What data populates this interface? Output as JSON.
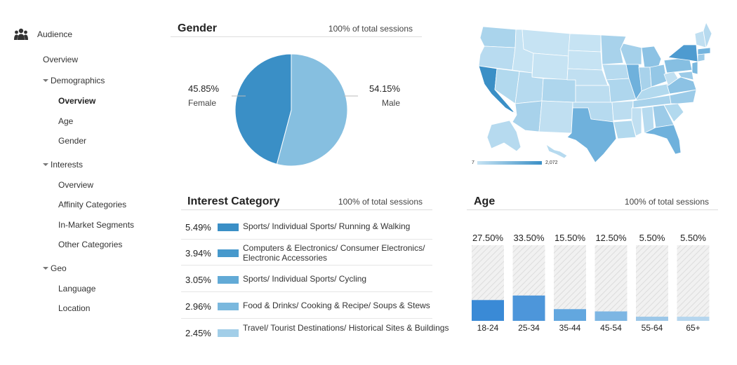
{
  "sidebar": {
    "audience_label": "Audience",
    "items": [
      {
        "label": "Overview",
        "kind": "top"
      },
      {
        "label": "Demographics",
        "kind": "group"
      },
      {
        "label": "Overview",
        "kind": "child",
        "selected": true
      },
      {
        "label": "Age",
        "kind": "child"
      },
      {
        "label": "Gender",
        "kind": "child"
      },
      {
        "label": "Interests",
        "kind": "group"
      },
      {
        "label": "Overview",
        "kind": "child"
      },
      {
        "label": "Affinity Categories",
        "kind": "child"
      },
      {
        "label": "In-Market Segments",
        "kind": "child"
      },
      {
        "label": "Other Categories",
        "kind": "child"
      },
      {
        "label": "Geo",
        "kind": "group"
      },
      {
        "label": "Language",
        "kind": "child"
      },
      {
        "label": "Location",
        "kind": "child"
      }
    ]
  },
  "gender": {
    "title": "Gender",
    "subtitle": "100% of total sessions",
    "female": {
      "pct": "45.85%",
      "label": "Female",
      "value": 45.85,
      "color": "#3a8fc6"
    },
    "male": {
      "pct": "54.15%",
      "label": "Male",
      "value": 54.15,
      "color": "#86bfe0"
    }
  },
  "interest": {
    "title": "Interest Category",
    "subtitle": "100% of total sessions",
    "rows": [
      {
        "pct": "5.49%",
        "value": 5.49,
        "name": "Sports/ Individual Sports/ Running & Walking",
        "color": "#3a8fc6"
      },
      {
        "pct": "3.94%",
        "value": 3.94,
        "name": "Computers & Electronics/ Consumer Electronics/ Electronic Accessories",
        "color": "#4799cc"
      },
      {
        "pct": "3.05%",
        "value": 3.05,
        "name": "Sports/ Individual Sports/ Cycling",
        "color": "#62aad6"
      },
      {
        "pct": "2.96%",
        "value": 2.96,
        "name": "Food & Drinks/ Cooking & Recipe/ Soups & Stews",
        "color": "#7ab8de"
      },
      {
        "pct": "2.45%",
        "value": 2.45,
        "name": "Travel/ Tourist Destinations/ Historical Sites & Buildings",
        "color": "#a2cee8"
      }
    ]
  },
  "age": {
    "title": "Age",
    "subtitle": "100% of total sessions"
  },
  "map": {
    "legend_min": "7",
    "legend_max": "2,072",
    "low_color": "#c6e3f3",
    "high_color": "#3a8fc6"
  },
  "chart_data": {
    "type": "bar",
    "categories": [
      "18-24",
      "25-34",
      "35-44",
      "45-54",
      "55-64",
      "65+"
    ],
    "values": [
      27.5,
      33.5,
      15.5,
      12.5,
      5.5,
      5.5
    ],
    "labels": [
      "27.50%",
      "33.50%",
      "15.50%",
      "12.50%",
      "5.50%",
      "5.50%"
    ],
    "colors": [
      "#3a8ad6",
      "#4d96da",
      "#62a7df",
      "#7db6e3",
      "#9cc7e8",
      "#b6d6ee"
    ],
    "ylim": [
      0,
      100
    ],
    "title": "Age"
  }
}
